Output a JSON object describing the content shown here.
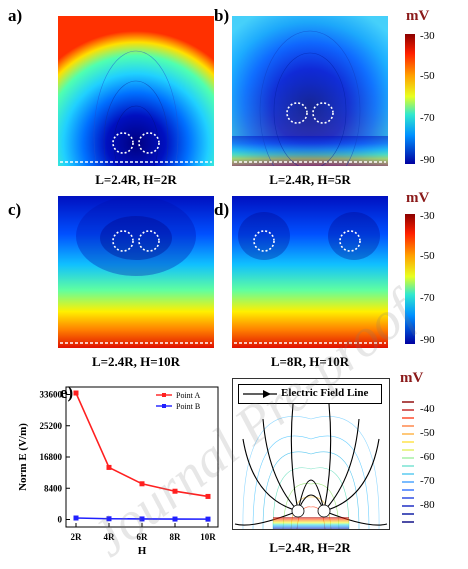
{
  "panels": {
    "a": {
      "label": "a)",
      "caption": "L=2.4R, H=2R"
    },
    "b": {
      "label": "b)",
      "caption": "L=2.4R, H=5R"
    },
    "c": {
      "label": "c)",
      "caption": "L=2.4R, H=10R"
    },
    "d": {
      "label": "d)",
      "caption": "L=8R, H=10R"
    },
    "e": {
      "label": "e)"
    },
    "f": {
      "label": "f)",
      "caption": "L=2.4R, H=2R",
      "legend": "Electric Field Line"
    }
  },
  "colorbars": {
    "top": {
      "unit": "mV",
      "ticks": [
        "-30",
        "-50",
        "-70",
        "-90"
      ]
    },
    "middle": {
      "unit": "mV",
      "ticks": [
        "-30",
        "-50",
        "-70",
        "-90"
      ]
    },
    "bottom": {
      "unit": "mV",
      "ticks": [
        "-40",
        "-50",
        "-60",
        "-70",
        "-80"
      ]
    }
  },
  "watermark": "Journal Pre-proof",
  "chart_data": {
    "type": "line",
    "categories": [
      "2R",
      "4R",
      "6R",
      "8R",
      "10R"
    ],
    "xlabel": "H",
    "ylabel": "Norm E (V/m)",
    "ylim": [
      0,
      33600
    ],
    "yticks": [
      "0",
      "8400",
      "16800",
      "25200",
      "33600"
    ],
    "legend_position": "top-right",
    "series": [
      {
        "name": "Point A",
        "color": "#ff2020",
        "values": [
          34000,
          14000,
          9600,
          7600,
          6200
        ]
      },
      {
        "name": "Point B",
        "color": "#2020ff",
        "values": [
          400,
          200,
          150,
          120,
          100
        ]
      }
    ]
  }
}
